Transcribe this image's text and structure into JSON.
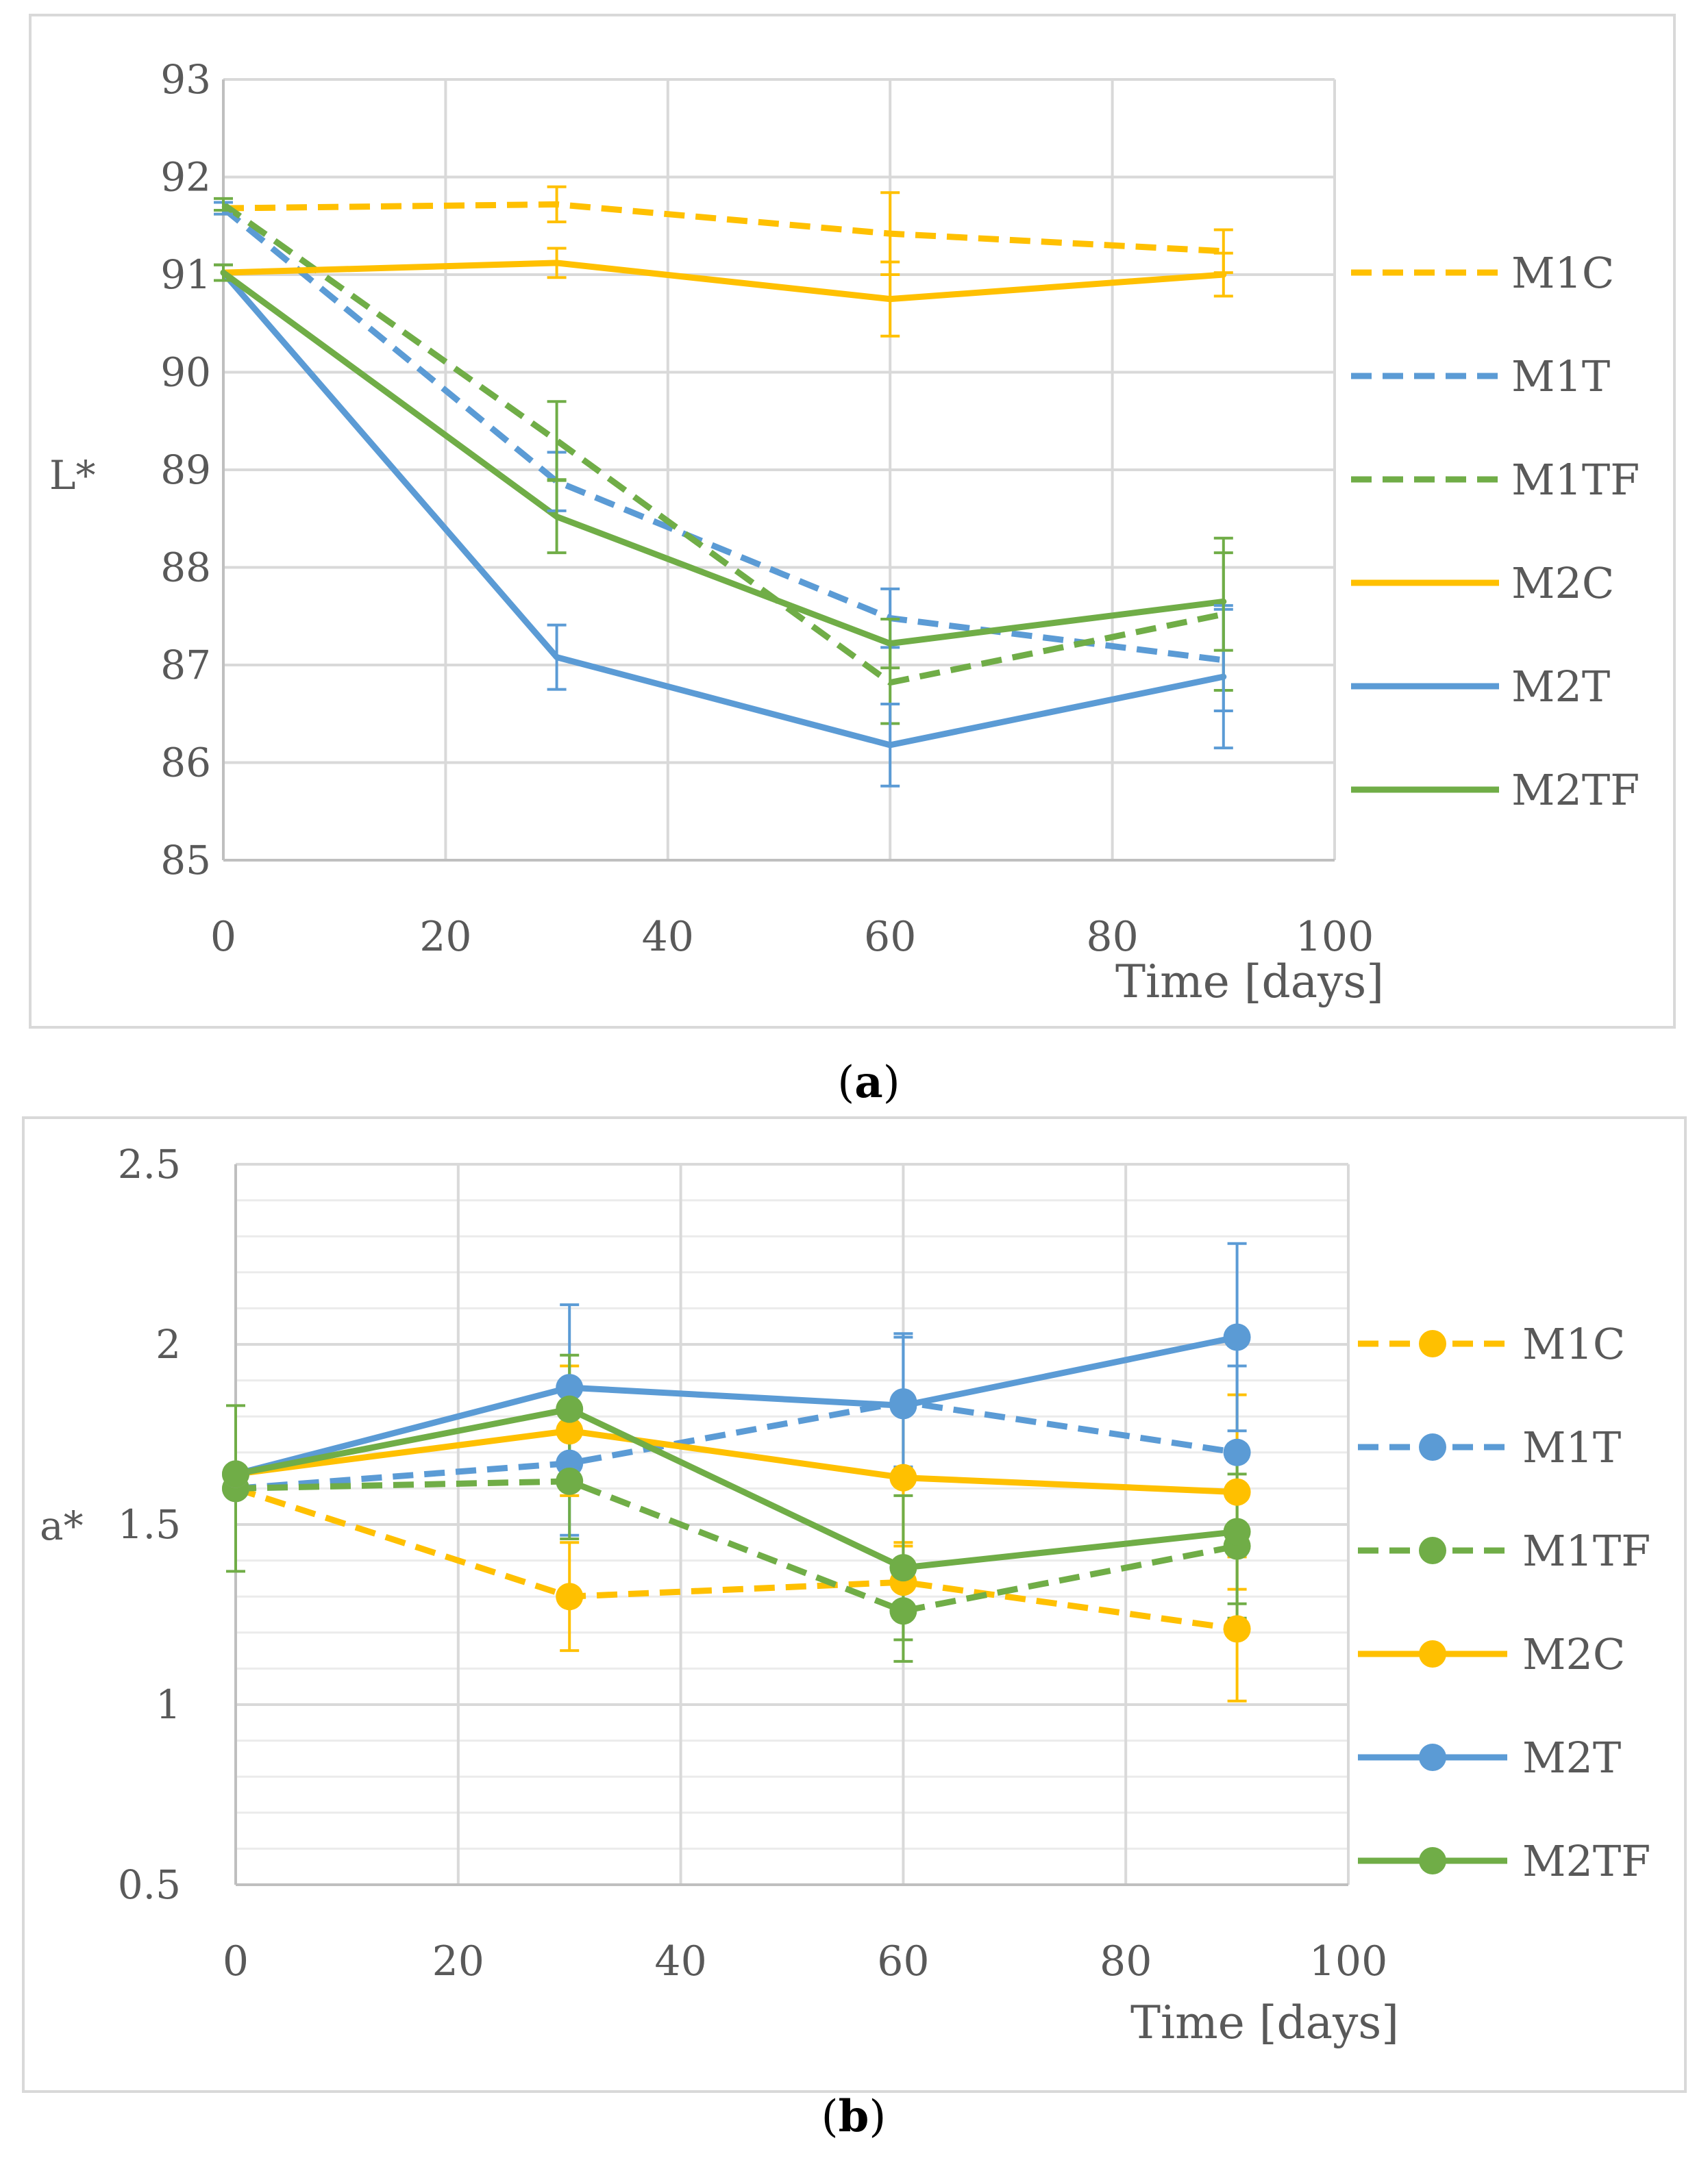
{
  "colors": {
    "orange": "#FFC000",
    "blue": "#5B9BD5",
    "green": "#70AD47",
    "grid": "#D9D9D9",
    "axis": "#BFBFBF",
    "text": "#595959",
    "frame": "#D9D9D9"
  },
  "chart_data": [
    {
      "id": "a",
      "type": "line",
      "caption_open": "(",
      "caption_letter": "a",
      "caption_close": ")",
      "ylabel": "L*",
      "xlabel": "Time [days]",
      "xlim": [
        0,
        100
      ],
      "ylim": [
        85,
        93
      ],
      "xticks": [
        "0",
        "20",
        "40",
        "60",
        "80",
        "100"
      ],
      "yticks": [
        "85",
        "86",
        "87",
        "88",
        "89",
        "90",
        "91",
        "92",
        "93"
      ],
      "x": [
        0,
        30,
        60,
        90
      ],
      "series": [
        {
          "name": "M1C",
          "color": "orange",
          "dashed": true,
          "values": [
            91.68,
            91.72,
            91.42,
            91.24
          ],
          "errors": [
            0.06,
            0.18,
            0.42,
            0.22
          ]
        },
        {
          "name": "M1T",
          "color": "blue",
          "dashed": true,
          "values": [
            91.68,
            88.88,
            87.48,
            87.05
          ],
          "errors": [
            0.06,
            0.3,
            0.3,
            0.52
          ]
        },
        {
          "name": "M1TF",
          "color": "green",
          "dashed": true,
          "values": [
            91.72,
            89.3,
            86.82,
            87.52
          ],
          "errors": [
            0.06,
            0.4,
            0.42,
            0.78
          ]
        },
        {
          "name": "M2C",
          "color": "orange",
          "dashed": false,
          "values": [
            91.02,
            91.12,
            90.75,
            91.0
          ],
          "errors": [
            0.08,
            0.15,
            0.38,
            0.22
          ]
        },
        {
          "name": "M2T",
          "color": "blue",
          "dashed": false,
          "values": [
            91.02,
            87.08,
            86.18,
            86.88
          ],
          "errors": [
            0.08,
            0.33,
            0.42,
            0.73
          ]
        },
        {
          "name": "M2TF",
          "color": "green",
          "dashed": false,
          "values": [
            91.02,
            88.52,
            87.22,
            87.65
          ],
          "errors": [
            0.08,
            0.37,
            0.25,
            0.5
          ]
        }
      ]
    },
    {
      "id": "b",
      "type": "line",
      "caption_open": "(",
      "caption_letter": "b",
      "caption_close": ")",
      "ylabel": "a*",
      "xlabel": "Time [days]",
      "xlim": [
        0,
        100
      ],
      "ylim": [
        0.5,
        2.5
      ],
      "xticks": [
        "0",
        "20",
        "40",
        "60",
        "80",
        "100"
      ],
      "yticks": [
        "0.5",
        "1",
        "1.5",
        "2",
        "2.5"
      ],
      "x": [
        0,
        30,
        60,
        90
      ],
      "markers": true,
      "series": [
        {
          "name": "M1C",
          "color": "orange",
          "dashed": true,
          "values": [
            1.6,
            1.3,
            1.34,
            1.21
          ],
          "errors": [
            0.02,
            0.15,
            0.1,
            0.2
          ]
        },
        {
          "name": "M1T",
          "color": "blue",
          "dashed": true,
          "values": [
            1.6,
            1.67,
            1.84,
            1.7
          ],
          "errors": [
            0.02,
            0.2,
            0.18,
            0.24
          ]
        },
        {
          "name": "M1TF",
          "color": "green",
          "dashed": true,
          "values": [
            1.6,
            1.62,
            1.26,
            1.44
          ],
          "errors": [
            0.23,
            0.16,
            0.14,
            0.2
          ]
        },
        {
          "name": "M2C",
          "color": "orange",
          "dashed": false,
          "values": [
            1.64,
            1.76,
            1.63,
            1.59
          ],
          "errors": [
            0.02,
            0.18,
            0.18,
            0.27
          ]
        },
        {
          "name": "M2T",
          "color": "blue",
          "dashed": false,
          "values": [
            1.64,
            1.88,
            1.83,
            2.02
          ],
          "errors": [
            0.02,
            0.23,
            0.2,
            0.26
          ]
        },
        {
          "name": "M2TF",
          "color": "green",
          "dashed": false,
          "values": [
            1.64,
            1.82,
            1.38,
            1.48
          ],
          "errors": [
            0.02,
            0.15,
            0.2,
            0.2
          ]
        }
      ]
    }
  ]
}
